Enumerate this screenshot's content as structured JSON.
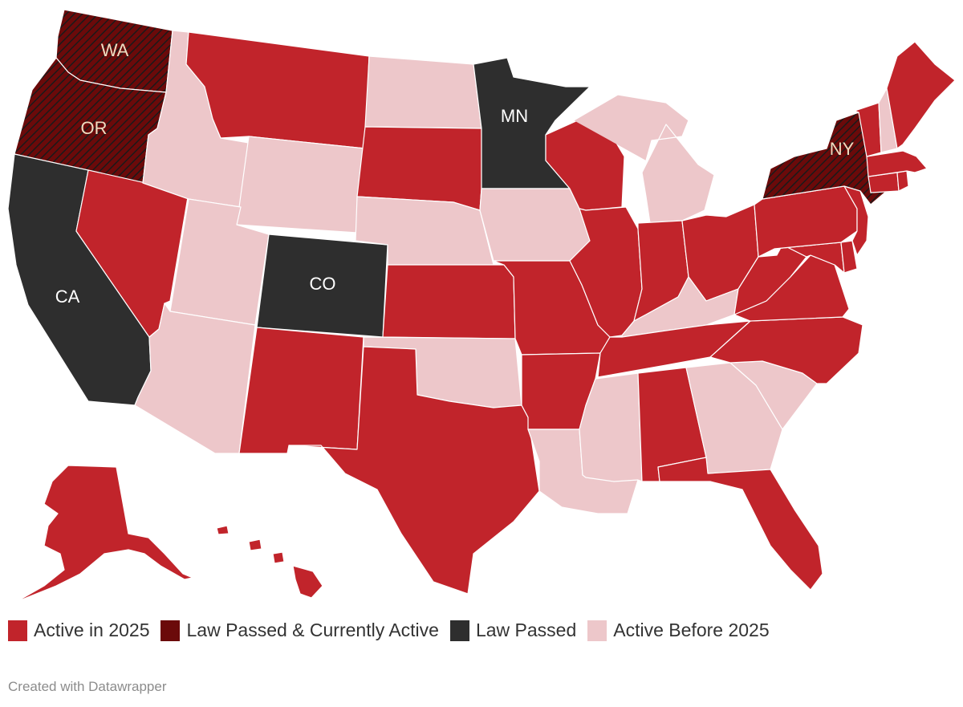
{
  "colors": {
    "active_2025": "#c1242b",
    "law_active": "#6b0a0a",
    "law_passed": "#2e2e2e",
    "active_before": "#edc7ca",
    "hatch": "#1a1a1a",
    "label_light": "#f1dcc0",
    "label_white": "#ffffff"
  },
  "states": [
    {
      "id": "WA",
      "category": "law_active",
      "label": "WA"
    },
    {
      "id": "OR",
      "category": "law_active",
      "label": "OR"
    },
    {
      "id": "CA",
      "category": "law_passed",
      "label": "CA"
    },
    {
      "id": "NV",
      "category": "active_2025"
    },
    {
      "id": "ID",
      "category": "active_before"
    },
    {
      "id": "MT",
      "category": "active_2025"
    },
    {
      "id": "WY",
      "category": "active_before"
    },
    {
      "id": "UT",
      "category": "active_before"
    },
    {
      "id": "AZ",
      "category": "active_before"
    },
    {
      "id": "CO",
      "category": "law_passed",
      "label": "CO"
    },
    {
      "id": "NM",
      "category": "active_2025"
    },
    {
      "id": "ND",
      "category": "active_before"
    },
    {
      "id": "SD",
      "category": "active_2025"
    },
    {
      "id": "NE",
      "category": "active_before"
    },
    {
      "id": "KS",
      "category": "active_2025"
    },
    {
      "id": "OK",
      "category": "active_before"
    },
    {
      "id": "TX",
      "category": "active_2025"
    },
    {
      "id": "MN",
      "category": "law_passed",
      "label": "MN"
    },
    {
      "id": "IA",
      "category": "active_before"
    },
    {
      "id": "MO",
      "category": "active_2025"
    },
    {
      "id": "AR",
      "category": "active_2025"
    },
    {
      "id": "LA",
      "category": "active_before"
    },
    {
      "id": "WI",
      "category": "active_2025"
    },
    {
      "id": "IL",
      "category": "active_2025"
    },
    {
      "id": "MI",
      "category": "active_before"
    },
    {
      "id": "IN",
      "category": "active_2025"
    },
    {
      "id": "OH",
      "category": "active_2025"
    },
    {
      "id": "KY",
      "category": "active_before"
    },
    {
      "id": "TN",
      "category": "active_2025"
    },
    {
      "id": "MS",
      "category": "active_before"
    },
    {
      "id": "AL",
      "category": "active_2025"
    },
    {
      "id": "GA",
      "category": "active_before"
    },
    {
      "id": "FL",
      "category": "active_2025"
    },
    {
      "id": "SC",
      "category": "active_before"
    },
    {
      "id": "NC",
      "category": "active_2025"
    },
    {
      "id": "VA",
      "category": "active_2025"
    },
    {
      "id": "WV",
      "category": "active_2025"
    },
    {
      "id": "MD",
      "category": "active_2025"
    },
    {
      "id": "DE",
      "category": "active_2025"
    },
    {
      "id": "PA",
      "category": "active_2025"
    },
    {
      "id": "NJ",
      "category": "active_2025"
    },
    {
      "id": "NY",
      "category": "law_active",
      "label": "NY"
    },
    {
      "id": "CT",
      "category": "active_2025"
    },
    {
      "id": "RI",
      "category": "active_2025"
    },
    {
      "id": "MA",
      "category": "active_2025"
    },
    {
      "id": "VT",
      "category": "active_2025"
    },
    {
      "id": "NH",
      "category": "active_before"
    },
    {
      "id": "ME",
      "category": "active_2025"
    },
    {
      "id": "AK",
      "category": "active_2025"
    },
    {
      "id": "HI",
      "category": "active_2025"
    }
  ],
  "legend": [
    {
      "key": "active_2025",
      "label": "Active in 2025"
    },
    {
      "key": "law_active",
      "label": "Law Passed & Currently Active"
    },
    {
      "key": "law_passed",
      "label": "Law Passed"
    },
    {
      "key": "active_before",
      "label": "Active Before 2025"
    }
  ],
  "credit": "Created with Datawrapper"
}
